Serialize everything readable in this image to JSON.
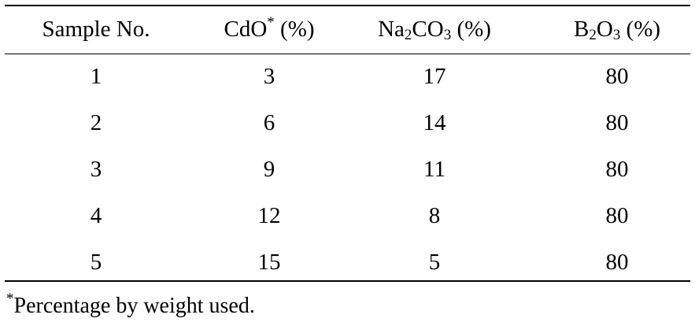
{
  "table": {
    "headers": {
      "sample": "Sample No.",
      "cdo_base": "CdO",
      "cdo_mark": "*",
      "cdo_unit": " (%)",
      "na_a": "Na",
      "na_sub1": "2",
      "na_b": "CO",
      "na_sub2": "3",
      "na_unit": " (%)",
      "b_a": "B",
      "b_sub1": "2",
      "b_b": "O",
      "b_sub2": "3",
      "b_unit": " (%)"
    },
    "rows": [
      [
        "1",
        "3",
        "17",
        "80"
      ],
      [
        "2",
        "6",
        "14",
        "80"
      ],
      [
        "3",
        "9",
        "11",
        "80"
      ],
      [
        "4",
        "12",
        "8",
        "80"
      ],
      [
        "5",
        "15",
        "5",
        "80"
      ]
    ]
  },
  "footnote": {
    "mark": "*",
    "text": "Percentage by weight used."
  }
}
